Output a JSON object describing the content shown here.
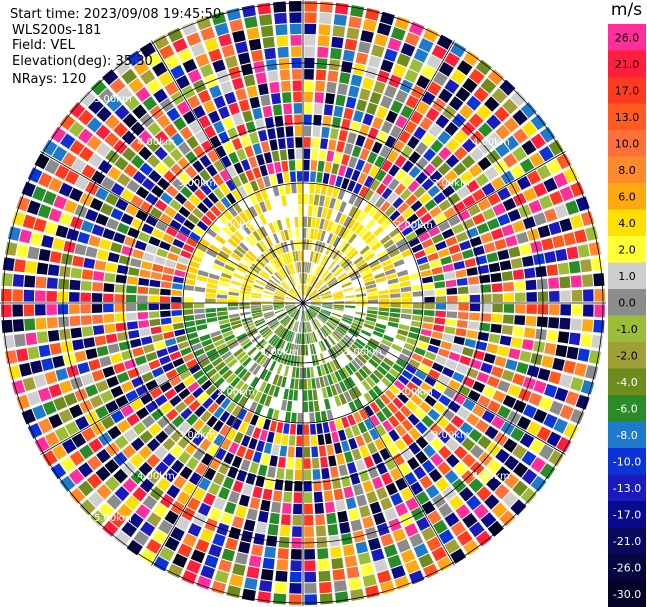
{
  "info": {
    "start_time": "Start time: 2023/09/08 19:45:50",
    "instrument": "WLS200s-181",
    "field": "Field: VEL",
    "elevation": "Elevation(deg): 35.30",
    "nrays": "NRays: 120"
  },
  "ring_labels": {
    "r1": "1.00km",
    "r2": "2.00km",
    "r3": "3.00km",
    "r4": "4.00km",
    "r5": "5.00km"
  },
  "colorbar": {
    "unit": "m/s",
    "ticks": [
      "26.0",
      "21.0",
      "17.0",
      "13.0",
      "10.0",
      "8.0",
      "6.0",
      "4.0",
      "2.0",
      "1.0",
      "0.0",
      "-1.0",
      "-2.0",
      "-4.0",
      "-6.0",
      "-8.0",
      "-10.0",
      "-13.0",
      "-17.0",
      "-21.0",
      "-26.0",
      "-30.0"
    ],
    "colors": [
      "#ff2e9a",
      "#ff1f3d",
      "#ff3a1f",
      "#ff5a1f",
      "#ff6f3a",
      "#ff8a2a",
      "#ffa812",
      "#ffe000",
      "#ffff33",
      "#cfcfcf",
      "#8c8c8c",
      "#9bbd38",
      "#a0a036",
      "#6e8c1e",
      "#2a8c28",
      "#1f7acc",
      "#0b34d6",
      "#1b1bbd",
      "#0a0a8c",
      "#08085e",
      "#050540",
      "#030326"
    ]
  },
  "display": {
    "background": "#ffffff",
    "grid_color": "#000000",
    "rings": 5,
    "spokes": 12
  }
}
